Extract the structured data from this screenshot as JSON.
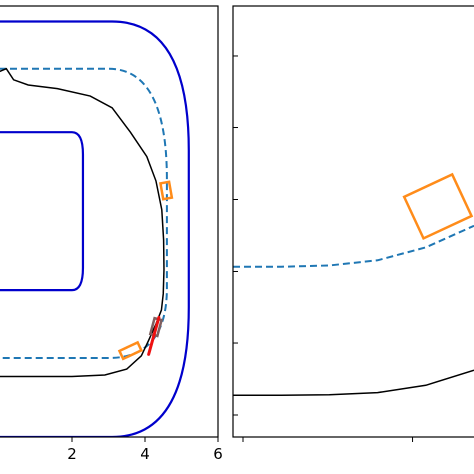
{
  "chart_data": [
    {
      "type": "line",
      "xlim": [
        0.0,
        6.0
      ],
      "ylim": [
        0.0,
        5.84
      ],
      "x_ticks": [
        2,
        4,
        6
      ],
      "x_tick_labels": [
        "2",
        "4",
        "6"
      ],
      "grid": false,
      "colors": {
        "track": "#0000cc",
        "reference": "#1f77b4",
        "trajectory": "#000000",
        "obstacle": "#ff8c1a",
        "ego": "#7f5f5f",
        "prediction": "#ee1111"
      },
      "track_outer": [
        [
          0,
          5.63
        ],
        [
          3.1,
          5.63
        ],
        [
          5.2,
          3.88
        ],
        [
          5.2,
          1.76
        ],
        [
          3.1,
          0.0
        ],
        [
          0,
          0.0
        ]
      ],
      "track_inner": [
        [
          0,
          4.13
        ],
        [
          2.0,
          4.13
        ],
        [
          2.3,
          3.83
        ],
        [
          2.3,
          2.29
        ],
        [
          2.0,
          1.99
        ],
        [
          0,
          1.99
        ]
      ],
      "reference_path": [
        [
          0,
          4.99
        ],
        [
          3.0,
          4.99
        ],
        [
          4.6,
          3.49
        ],
        [
          4.6,
          2.02
        ],
        [
          3.2,
          1.07
        ],
        [
          0,
          1.07
        ]
      ],
      "trajectory": [
        [
          0,
          4.95
        ],
        [
          0.2,
          4.99
        ],
        [
          0.4,
          4.84
        ],
        [
          0.8,
          4.77
        ],
        [
          1.6,
          4.72
        ],
        [
          2.5,
          4.62
        ],
        [
          3.1,
          4.46
        ],
        [
          3.6,
          4.13
        ],
        [
          4.05,
          3.8
        ],
        [
          4.3,
          3.47
        ],
        [
          4.46,
          3.08
        ],
        [
          4.51,
          2.67
        ],
        [
          4.52,
          2.27
        ],
        [
          4.5,
          1.94
        ],
        [
          4.45,
          1.72
        ],
        [
          4.3,
          1.53
        ],
        [
          4.1,
          1.31
        ],
        [
          3.9,
          1.1
        ],
        [
          3.5,
          0.92
        ],
        [
          2.9,
          0.84
        ],
        [
          2.0,
          0.82
        ],
        [
          0,
          0.82
        ]
      ],
      "obstacles": [
        {
          "cx": 4.58,
          "cy": 3.34,
          "w": 0.24,
          "h": 0.44,
          "angle": -10
        },
        {
          "cx": 3.6,
          "cy": 1.17,
          "w": 0.55,
          "h": 0.24,
          "angle": -25
        }
      ],
      "ego": {
        "cx": 4.3,
        "cy": 1.49,
        "w": 0.2,
        "h": 0.45,
        "angle": 15
      },
      "prediction_path": [
        [
          4.38,
          1.62
        ],
        [
          4.1,
          1.12
        ]
      ]
    },
    {
      "type": "line",
      "xlim": [
        0.0,
        1.0
      ],
      "ylim": [
        0.0,
        1.0
      ],
      "grid": false,
      "reference_path": [
        [
          0,
          0.395
        ],
        [
          0.2,
          0.395
        ],
        [
          0.4,
          0.398
        ],
        [
          0.6,
          0.41
        ],
        [
          0.8,
          0.44
        ],
        [
          1.0,
          0.49
        ]
      ],
      "trajectory": [
        [
          0,
          0.097
        ],
        [
          0.2,
          0.097
        ],
        [
          0.4,
          0.098
        ],
        [
          0.6,
          0.103
        ],
        [
          0.8,
          0.12
        ],
        [
          1.0,
          0.155
        ]
      ],
      "obstacles": [
        {
          "cx": 0.85,
          "cy": 0.535,
          "w": 0.22,
          "h": 0.19,
          "angle": -25
        }
      ]
    }
  ]
}
